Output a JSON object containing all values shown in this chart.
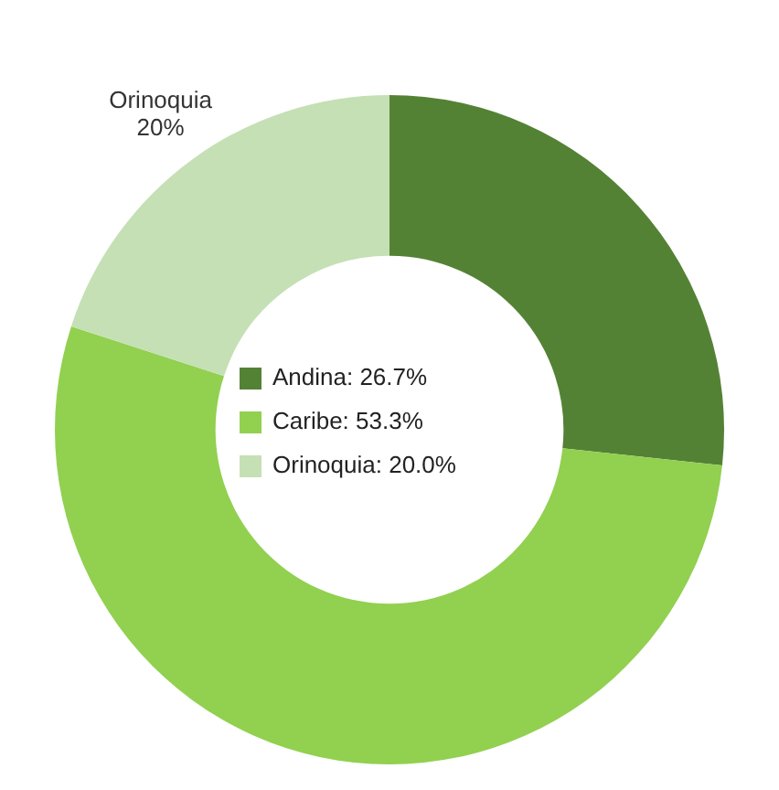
{
  "chart_data": {
    "type": "donut",
    "categories": [
      "Andina: 26.7%",
      "Caribe: 53.3%",
      "Orinoquia: 20.0%"
    ],
    "values": [
      26.7,
      53.3,
      20.0
    ],
    "colors": [
      "#548235",
      "#92d050",
      "#c5e0b4"
    ],
    "value_labels": [
      null,
      null,
      "Orinoquia\n20%"
    ],
    "legend": "center"
  }
}
